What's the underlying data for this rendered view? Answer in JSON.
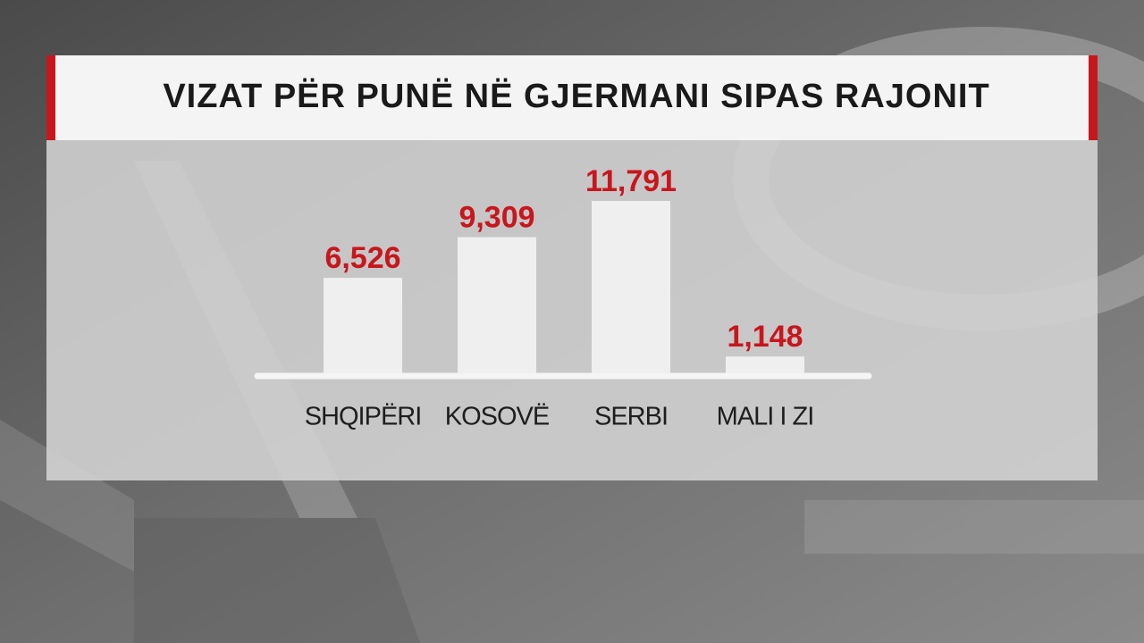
{
  "chart_data": {
    "type": "bar",
    "title": "VIZAT PËR PUNË NË GJERMANI SIPAS RAJONIT",
    "categories": [
      "SHQIPËRI",
      "KOSOVË",
      "SERBI",
      "MALI I ZI"
    ],
    "values": [
      6526,
      9309,
      11791,
      1148
    ],
    "value_labels": [
      "6,526",
      "9,309",
      "11,791",
      "1,148"
    ],
    "color": "#efefef",
    "label_color": "#c8161d"
  }
}
